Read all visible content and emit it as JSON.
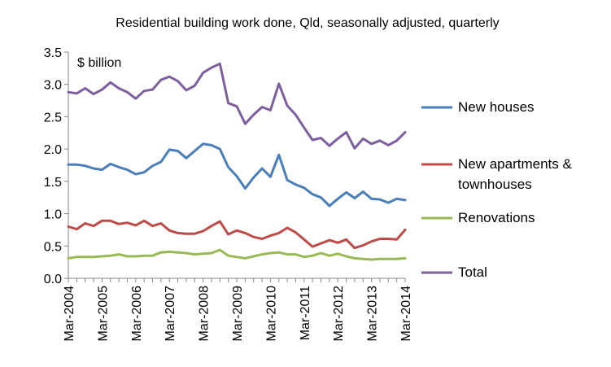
{
  "chart_data": {
    "type": "line",
    "title": "Residential building work done, Qld, seasonally adjusted, quarterly",
    "unit_label": "$ billion",
    "xlabel": "",
    "ylabel": "",
    "ylim": [
      0.0,
      3.5
    ],
    "yticks": [
      "0.0",
      "0.5",
      "1.0",
      "1.5",
      "2.0",
      "2.5",
      "3.0",
      "3.5"
    ],
    "x": [
      "Mar-2004",
      "Jun-2004",
      "Sep-2004",
      "Dec-2004",
      "Mar-2005",
      "Jun-2005",
      "Sep-2005",
      "Dec-2005",
      "Mar-2006",
      "Jun-2006",
      "Sep-2006",
      "Dec-2006",
      "Mar-2007",
      "Jun-2007",
      "Sep-2007",
      "Dec-2007",
      "Mar-2008",
      "Jun-2008",
      "Sep-2008",
      "Dec-2008",
      "Mar-2009",
      "Jun-2009",
      "Sep-2009",
      "Dec-2009",
      "Mar-2010",
      "Jun-2010",
      "Sep-2010",
      "Dec-2010",
      "Mar-2011",
      "Jun-2011",
      "Sep-2011",
      "Dec-2011",
      "Mar-2012",
      "Jun-2012",
      "Sep-2012",
      "Dec-2012",
      "Mar-2013",
      "Jun-2013",
      "Sep-2013",
      "Dec-2013",
      "Mar-2014"
    ],
    "xtick_labels": [
      "Mar-2004",
      "Mar-2005",
      "Mar-2006",
      "Mar-2007",
      "Mar-2008",
      "Mar-2009",
      "Mar-2010",
      "Mar-2011",
      "Mar-2012",
      "Mar-2013",
      "Mar-2014"
    ],
    "grid": false,
    "legend": "right",
    "series": [
      {
        "name": "New houses",
        "color": "#4a7ebb",
        "values": [
          1.76,
          1.76,
          1.74,
          1.7,
          1.68,
          1.77,
          1.72,
          1.68,
          1.61,
          1.64,
          1.74,
          1.8,
          1.99,
          1.97,
          1.86,
          1.97,
          2.08,
          2.06,
          2.0,
          1.72,
          1.58,
          1.39,
          1.56,
          1.7,
          1.57,
          1.91,
          1.52,
          1.45,
          1.4,
          1.3,
          1.25,
          1.12,
          1.23,
          1.33,
          1.24,
          1.34,
          1.23,
          1.22,
          1.17,
          1.23,
          1.21
        ]
      },
      {
        "name": "New apartments & townhouses",
        "color": "#be4b48",
        "values": [
          0.8,
          0.76,
          0.85,
          0.81,
          0.89,
          0.89,
          0.84,
          0.86,
          0.82,
          0.89,
          0.81,
          0.85,
          0.74,
          0.7,
          0.69,
          0.69,
          0.73,
          0.81,
          0.88,
          0.68,
          0.74,
          0.7,
          0.64,
          0.61,
          0.66,
          0.7,
          0.78,
          0.71,
          0.6,
          0.49,
          0.54,
          0.59,
          0.55,
          0.6,
          0.47,
          0.51,
          0.57,
          0.61,
          0.61,
          0.6,
          0.75
        ]
      },
      {
        "name": "Renovations",
        "color": "#98b954",
        "values": [
          0.31,
          0.33,
          0.33,
          0.33,
          0.34,
          0.35,
          0.37,
          0.34,
          0.34,
          0.35,
          0.35,
          0.4,
          0.41,
          0.4,
          0.39,
          0.37,
          0.38,
          0.39,
          0.44,
          0.35,
          0.33,
          0.31,
          0.34,
          0.37,
          0.39,
          0.4,
          0.37,
          0.37,
          0.33,
          0.35,
          0.39,
          0.35,
          0.38,
          0.34,
          0.31,
          0.3,
          0.29,
          0.3,
          0.3,
          0.3,
          0.31
        ]
      },
      {
        "name": "Total",
        "color": "#7d5fa0",
        "values": [
          2.88,
          2.86,
          2.94,
          2.85,
          2.92,
          3.03,
          2.94,
          2.88,
          2.78,
          2.9,
          2.92,
          3.07,
          3.12,
          3.05,
          2.91,
          2.98,
          3.18,
          3.26,
          3.32,
          2.71,
          2.66,
          2.39,
          2.53,
          2.65,
          2.6,
          3.01,
          2.67,
          2.53,
          2.33,
          2.14,
          2.17,
          2.05,
          2.16,
          2.26,
          2.01,
          2.16,
          2.08,
          2.13,
          2.06,
          2.13,
          2.26
        ]
      }
    ]
  }
}
